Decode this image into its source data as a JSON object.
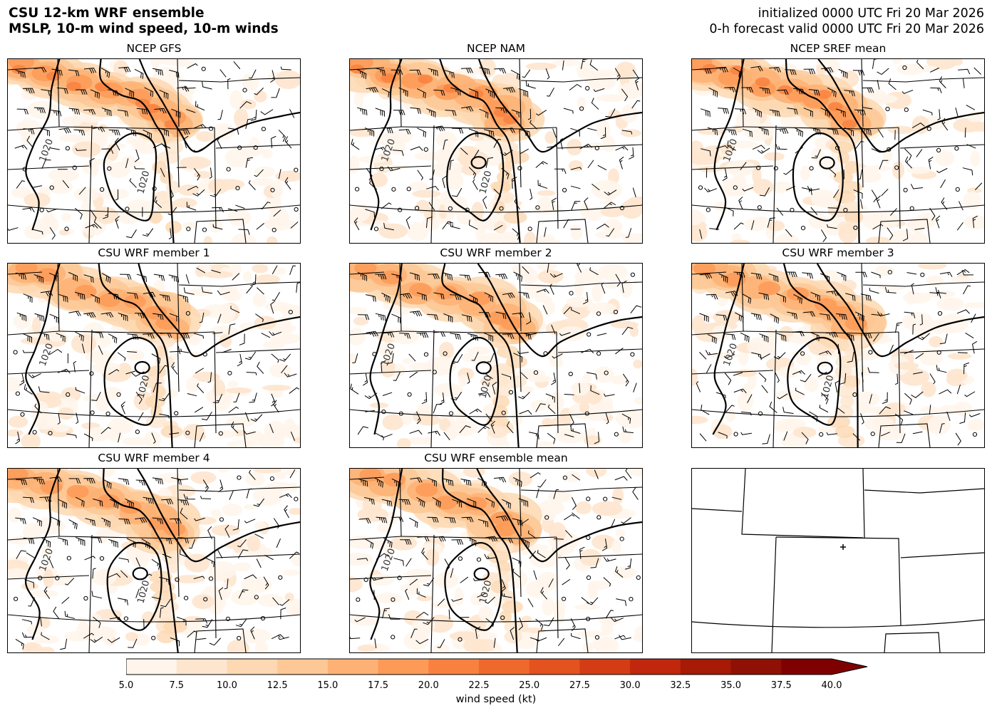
{
  "header": {
    "title_line1": "CSU 12-km WRF ensemble",
    "title_line2": "MSLP, 10-m wind speed, 10-m winds",
    "init_text": "initialized 0000 UTC Fri 20 Mar 2026",
    "valid_text": "0-h forecast valid 0000 UTC Fri 20 Mar 2026"
  },
  "panels": [
    {
      "title": "NCEP GFS",
      "isobar_labels": [
        "1020",
        "1020"
      ]
    },
    {
      "title": "NCEP NAM",
      "isobar_labels": [
        "1020",
        "1020"
      ]
    },
    {
      "title": "NCEP SREF mean",
      "isobar_labels": [
        "1020"
      ]
    },
    {
      "title": "CSU WRF member 1",
      "isobar_labels": [
        "1020",
        "1020"
      ]
    },
    {
      "title": "CSU WRF member 2",
      "isobar_labels": [
        "1020",
        "1020"
      ]
    },
    {
      "title": "CSU WRF member 3",
      "isobar_labels": [
        "1020",
        "1020"
      ]
    },
    {
      "title": "CSU WRF member 4",
      "isobar_labels": [
        "1020",
        "1020"
      ]
    },
    {
      "title": "CSU WRF ensemble mean",
      "isobar_labels": [
        "1020",
        "1020"
      ]
    },
    {
      "title": "",
      "isobar_labels": []
    }
  ],
  "colorbar": {
    "label": "wind speed (kt)",
    "ticks": [
      "5.0",
      "7.5",
      "10.0",
      "12.5",
      "15.0",
      "17.5",
      "20.0",
      "22.5",
      "25.0",
      "27.5",
      "30.0",
      "32.5",
      "35.0",
      "37.5",
      "40.0"
    ],
    "colors": [
      "#fff5eb",
      "#fee6ce",
      "#fdd8b2",
      "#fdc895",
      "#fdb174",
      "#fd9a57",
      "#f9813f",
      "#f0692c",
      "#e3521f",
      "#d43c15",
      "#c0270c",
      "#a61a06",
      "#8f1105",
      "#7f0000"
    ],
    "extend_color": "#7f0000"
  }
}
